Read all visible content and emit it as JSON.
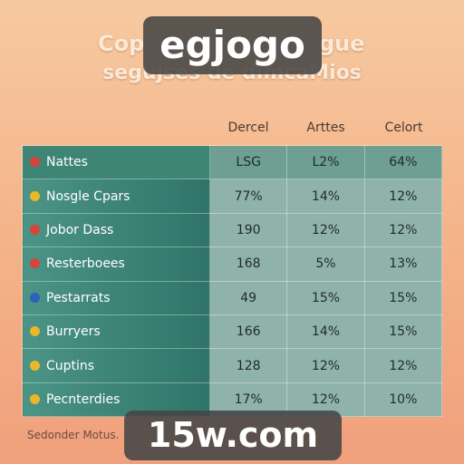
{
  "header": {
    "title_left": "Cop",
    "title_right": "gue",
    "subtitle": "segujses de dimcaMios"
  },
  "table": {
    "columns": [
      "Dercel",
      "Arttes",
      "Celort"
    ],
    "rows": [
      [
        "Nattes",
        "LSG",
        "L2%",
        "64%"
      ],
      [
        "Nosgle Cpars",
        "77%",
        "14%",
        "12%"
      ],
      [
        "Jobor Dass",
        "190",
        "12%",
        "12%"
      ],
      [
        "Resterboees",
        "168",
        "5%",
        "13%"
      ],
      [
        "Pestarrats",
        "49",
        "15%",
        "15%"
      ],
      [
        "Burryers",
        "166",
        "14%",
        "15%"
      ],
      [
        "Cuptins",
        "128",
        "12%",
        "12%"
      ],
      [
        "Pecnterdies",
        "17%",
        "12%",
        "10%"
      ]
    ]
  },
  "footer": "Sedonder Motus.",
  "watermarks": [
    "egjogo",
    "15w.com"
  ]
}
